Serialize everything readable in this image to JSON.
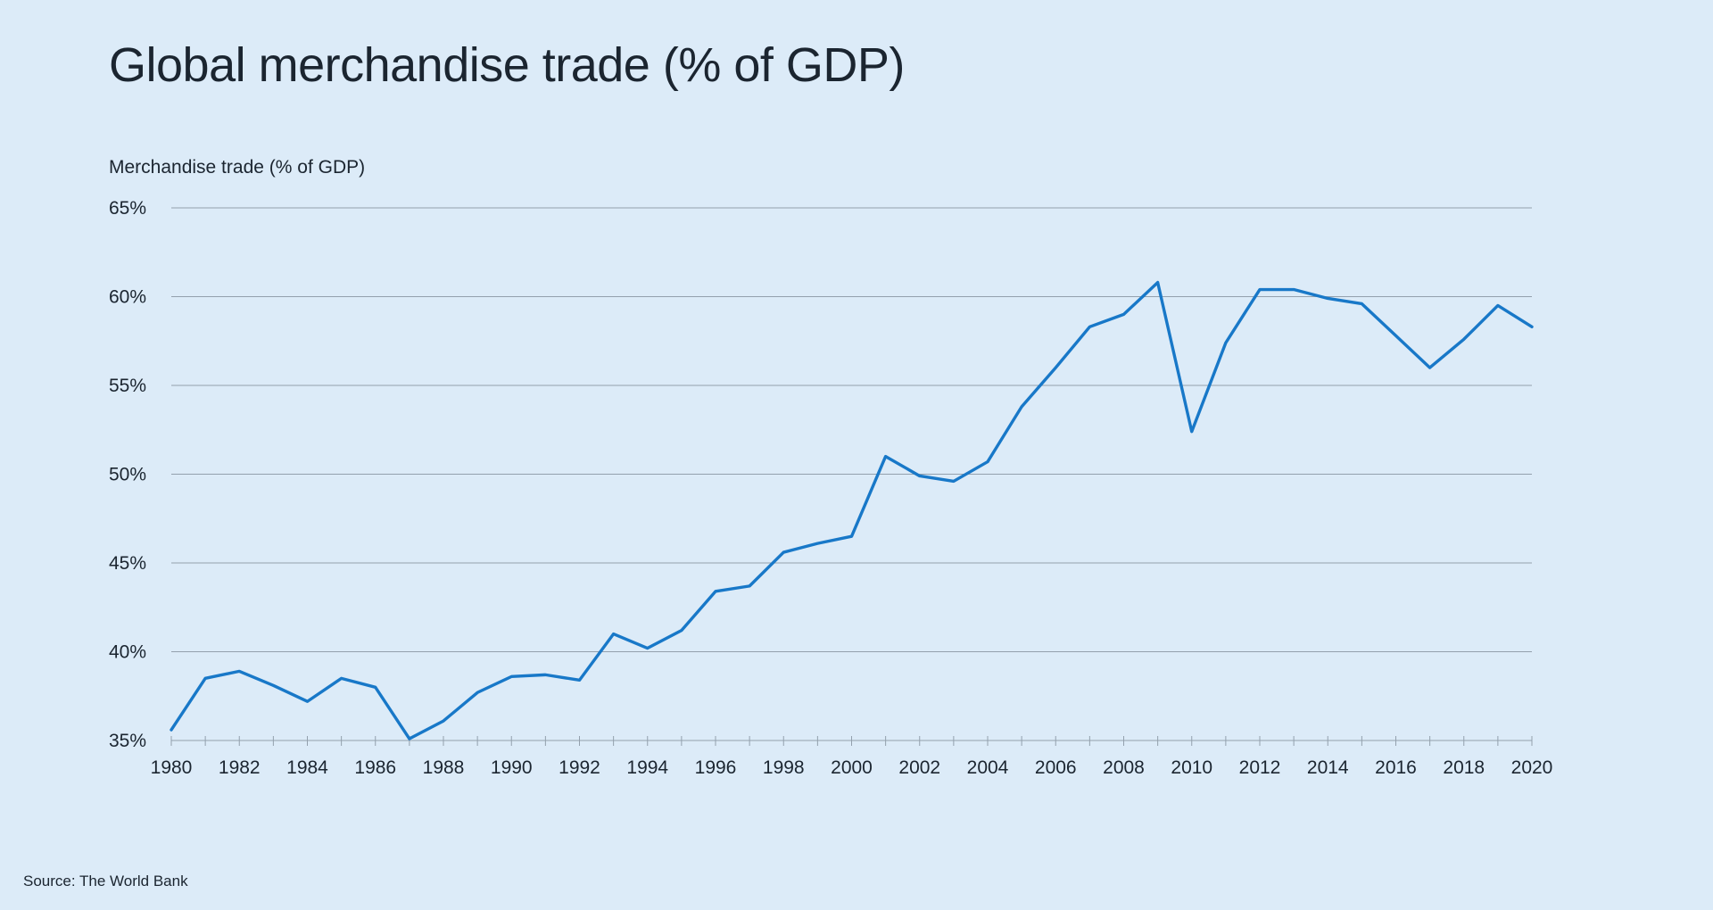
{
  "page": {
    "title": "Global merchandise trade (% of GDP)",
    "subtitle": "Merchandise trade (% of GDP)",
    "source": "Source: The World Bank"
  },
  "colors": {
    "background": "#dcebf8",
    "line": "#1878c8",
    "grid": "#93a0ad",
    "text": "#1b2530"
  },
  "chart_data": {
    "type": "line",
    "title": "Global merchandise trade (% of GDP)",
    "subtitle": "Merchandise trade (% of GDP)",
    "xlabel": "",
    "ylabel": "Merchandise trade (% of GDP)",
    "source": "Source: The World Bank",
    "grid": "horizontal",
    "legend": "none",
    "x": [
      1980,
      1981,
      1982,
      1983,
      1984,
      1985,
      1986,
      1987,
      1988,
      1989,
      1990,
      1991,
      1992,
      1993,
      1994,
      1995,
      1996,
      1997,
      1998,
      1999,
      2000,
      2001,
      2002,
      2003,
      2004,
      2005,
      2006,
      2007,
      2008,
      2009,
      2010,
      2011,
      2012,
      2013,
      2014,
      2015,
      2016,
      2017,
      2018,
      2019,
      2020
    ],
    "series": [
      {
        "name": "Merchandise trade (% of GDP)",
        "values": [
          35.6,
          38.5,
          38.9,
          38.1,
          37.2,
          38.5,
          38.0,
          35.1,
          36.1,
          37.7,
          38.6,
          38.7,
          38.4,
          41.0,
          40.2,
          41.2,
          43.4,
          43.7,
          45.6,
          46.1,
          46.5,
          51.0,
          49.9,
          49.6,
          50.7,
          53.8,
          56.0,
          58.3,
          59.0,
          60.8,
          52.4,
          57.4,
          60.4,
          60.4,
          59.9,
          59.6,
          57.8,
          56.0,
          57.6,
          59.5,
          58.3
        ]
      }
    ],
    "y_axis": {
      "min": 35,
      "max": 65,
      "ticks": [
        {
          "value": 65,
          "label": "65%"
        },
        {
          "value": 60,
          "label": "60%"
        },
        {
          "value": 55,
          "label": "55%"
        },
        {
          "value": 50,
          "label": "50%"
        },
        {
          "value": 45,
          "label": "45%"
        },
        {
          "value": 40,
          "label": "40%"
        },
        {
          "value": 35,
          "label": "35%"
        }
      ]
    },
    "x_axis": {
      "min": 1980,
      "max": 2020,
      "minor_tick_step": 1,
      "ticks": [
        {
          "value": 1980,
          "label": "1980"
        },
        {
          "value": 1982,
          "label": "1982"
        },
        {
          "value": 1984,
          "label": "1984"
        },
        {
          "value": 1986,
          "label": "1986"
        },
        {
          "value": 1988,
          "label": "1988"
        },
        {
          "value": 1990,
          "label": "1990"
        },
        {
          "value": 1992,
          "label": "1992"
        },
        {
          "value": 1994,
          "label": "1994"
        },
        {
          "value": 1996,
          "label": "1996"
        },
        {
          "value": 1998,
          "label": "1998"
        },
        {
          "value": 2000,
          "label": "2000"
        },
        {
          "value": 2002,
          "label": "2002"
        },
        {
          "value": 2004,
          "label": "2004"
        },
        {
          "value": 2006,
          "label": "2006"
        },
        {
          "value": 2008,
          "label": "2008"
        },
        {
          "value": 2010,
          "label": "2010"
        },
        {
          "value": 2012,
          "label": "2012"
        },
        {
          "value": 2014,
          "label": "2014"
        },
        {
          "value": 2016,
          "label": "2016"
        },
        {
          "value": 2018,
          "label": "2018"
        },
        {
          "value": 2020,
          "label": "2020"
        }
      ]
    }
  }
}
